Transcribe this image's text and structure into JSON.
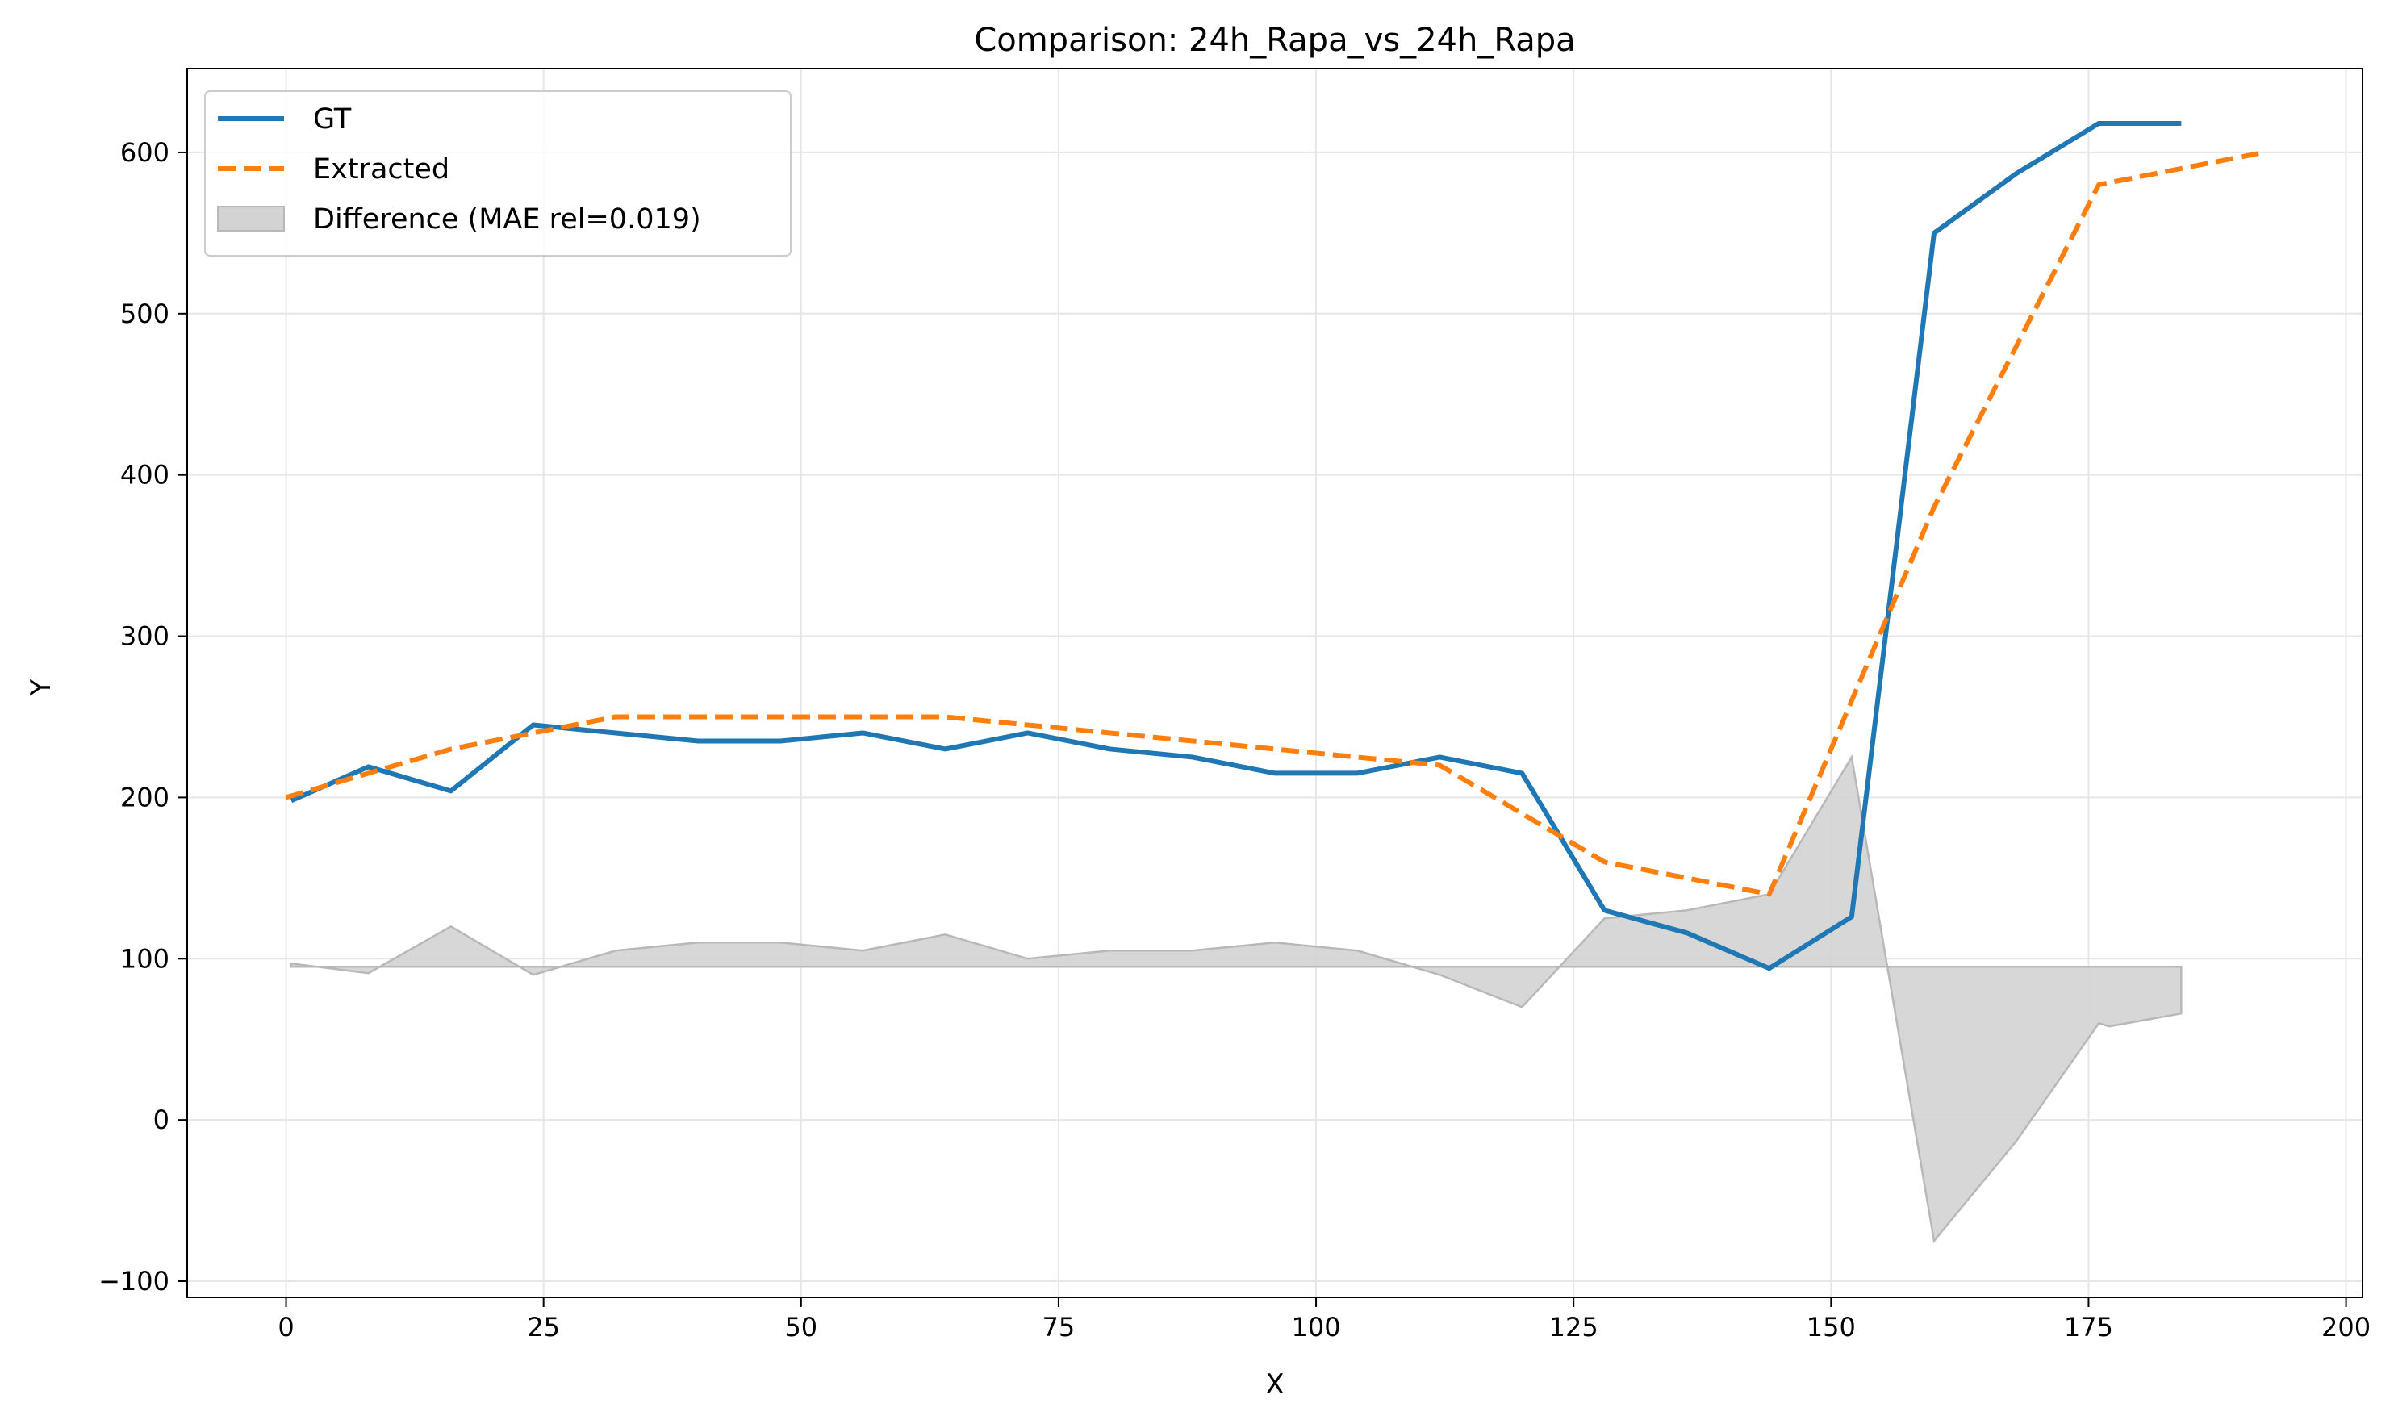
{
  "chart_data": {
    "type": "line",
    "title": "Comparison: 24h_Rapa_vs_24h_Rapa",
    "xlabel": "X",
    "ylabel": "Y",
    "xlim": [
      -9.6,
      201.6
    ],
    "ylim": [
      -110,
      652
    ],
    "xticks": [
      0,
      25,
      50,
      75,
      100,
      125,
      150,
      175,
      200
    ],
    "xtick_labels": [
      "0",
      "25",
      "50",
      "75",
      "100",
      "125",
      "150",
      "175",
      "200"
    ],
    "yticks": [
      -100,
      0,
      100,
      200,
      300,
      400,
      500,
      600
    ],
    "ytick_labels": [
      "−100",
      "0",
      "100",
      "200",
      "300",
      "400",
      "500",
      "600"
    ],
    "grid": true,
    "legend_position": "upper-left",
    "series": [
      {
        "name": "GT",
        "style": "solid",
        "color": "#1f77b4",
        "x": [
          0.5,
          8,
          16,
          24,
          32,
          40,
          48,
          56,
          64,
          72,
          80,
          88,
          96,
          104,
          112,
          120,
          128,
          136,
          144,
          152,
          160,
          168,
          176,
          184
        ],
        "y": [
          198,
          219,
          204,
          245,
          240,
          235,
          235,
          240,
          230,
          240,
          230,
          225,
          215,
          215,
          225,
          215,
          130,
          116,
          94,
          126,
          550,
          587,
          618,
          618
        ]
      },
      {
        "name": "Extracted",
        "style": "dashed",
        "color": "#ff7f0e",
        "x": [
          0,
          8,
          16,
          24,
          32,
          40,
          48,
          56,
          64,
          72,
          80,
          88,
          96,
          104,
          112,
          120,
          128,
          136,
          144,
          152,
          160,
          168,
          176,
          184,
          192
        ],
        "y": [
          200,
          215,
          230,
          240,
          250,
          250,
          250,
          250,
          250,
          245,
          240,
          235,
          230,
          225,
          220,
          190,
          160,
          150,
          140,
          260,
          380,
          480,
          580,
          590,
          600
        ]
      },
      {
        "name": "Difference (MAE rel=0.019)",
        "style": "fill",
        "color": "#d3d3d3",
        "baseline": 95,
        "x": [
          0.5,
          8,
          16,
          24,
          32,
          40,
          48,
          56,
          64,
          72,
          80,
          88,
          96,
          104,
          112,
          120,
          128,
          136,
          144,
          152,
          160,
          168,
          176,
          177,
          184
        ],
        "y": [
          97,
          91,
          120,
          90,
          105,
          110,
          110,
          105,
          115,
          100,
          105,
          105,
          110,
          105,
          90,
          70,
          125,
          130,
          140,
          225,
          -75,
          -13,
          60,
          58,
          66
        ]
      }
    ]
  }
}
